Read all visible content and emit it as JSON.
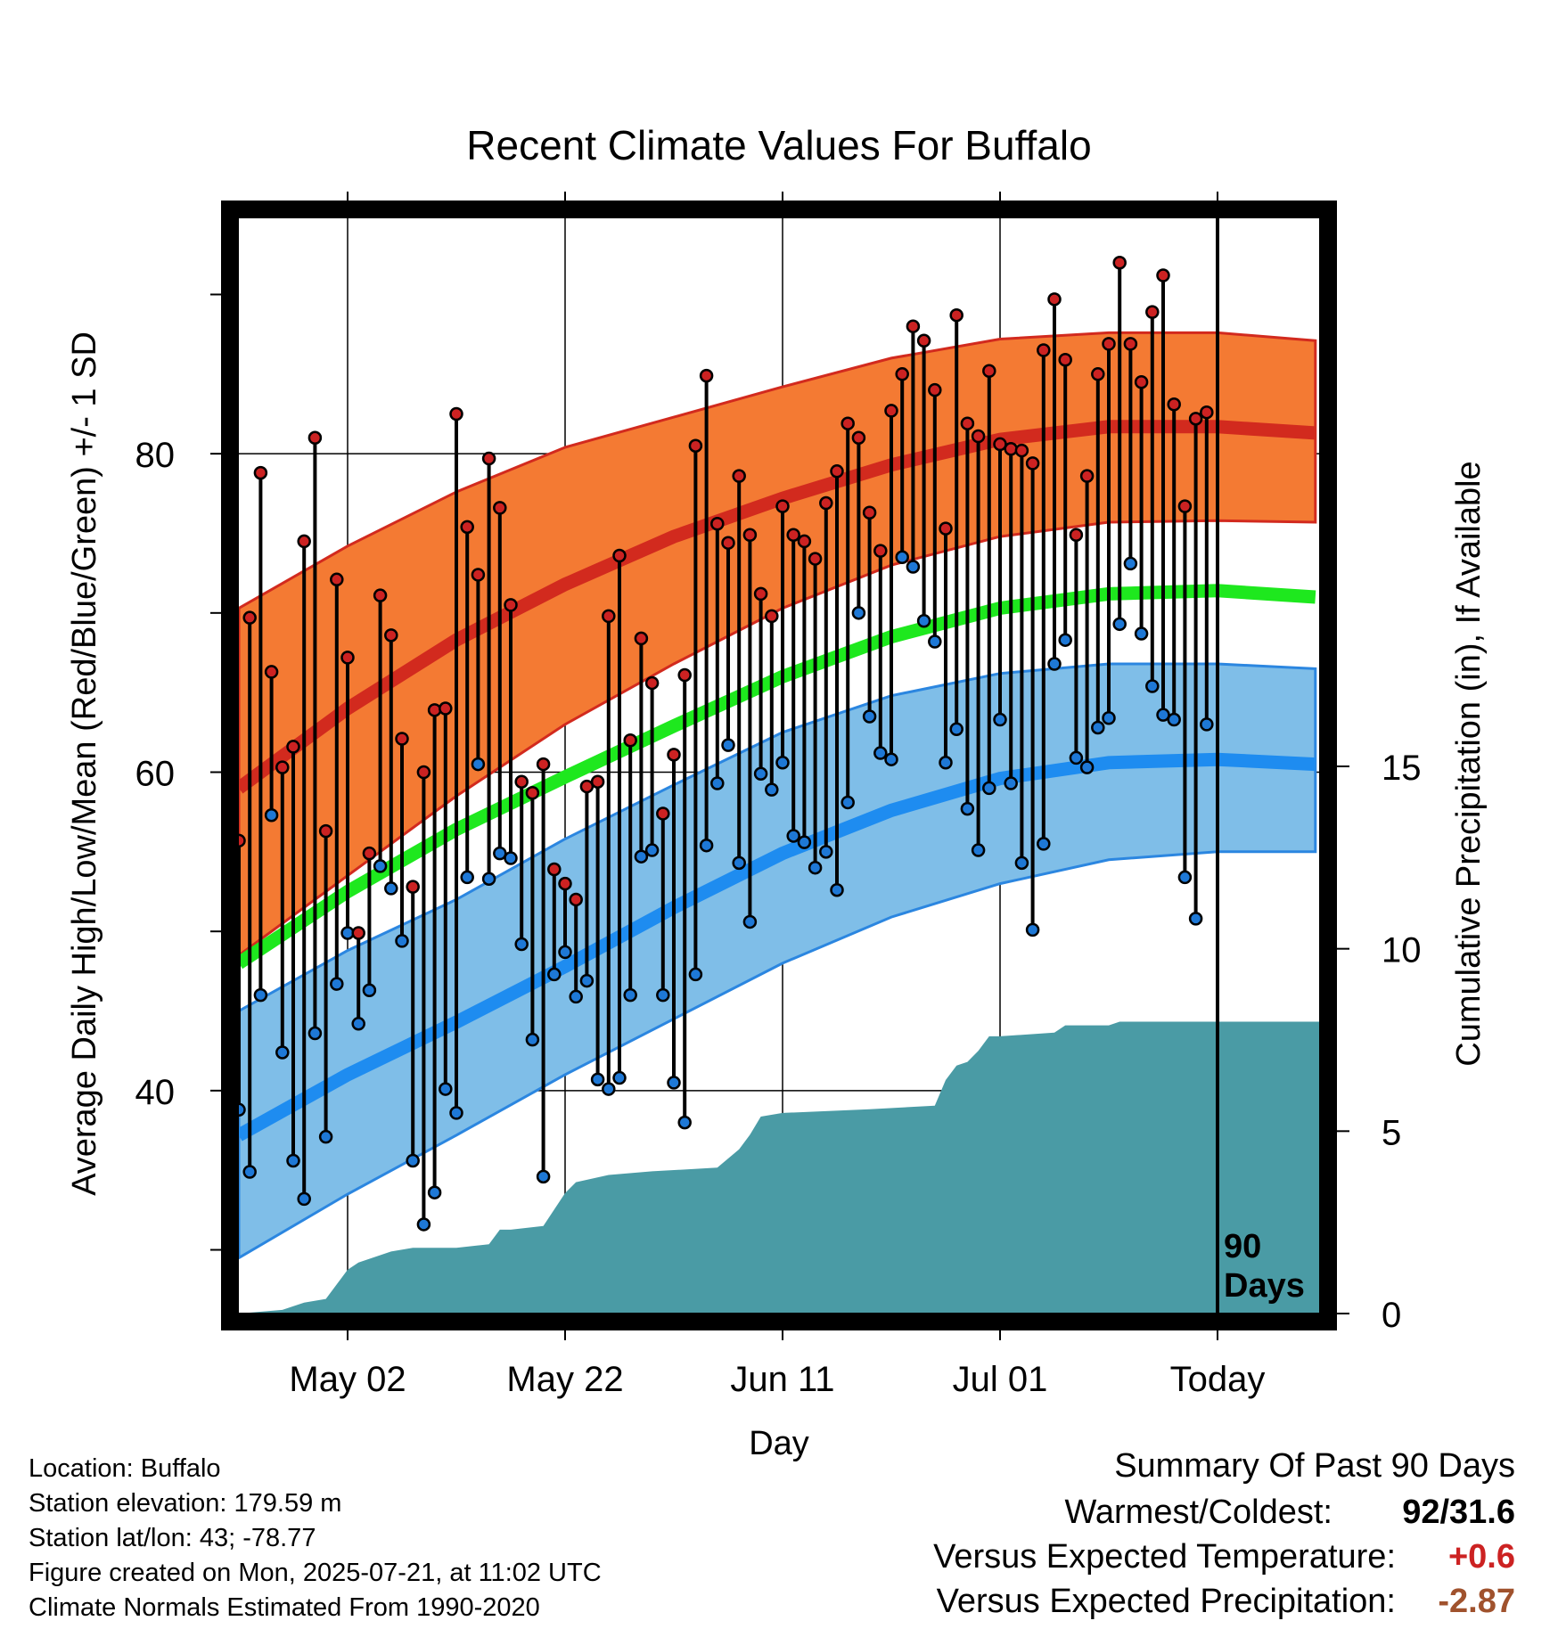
{
  "chart_data": {
    "type": "line",
    "title": "Recent Climate Values For Buffalo",
    "xlabel": "Day",
    "ylabel": "Average Daily High/Low/Mean (Red/Blue/Green) +/- 1 SD",
    "y2label": "Cumulative Precipitation (in), If Available",
    "ylim": [
      26,
      94
    ],
    "y_ticks": [
      40,
      60,
      80
    ],
    "y2lim": [
      0,
      30
    ],
    "y2_ticks": [
      0,
      5,
      10,
      15
    ],
    "x_ticks": [
      {
        "label": "May 02",
        "day": 10
      },
      {
        "label": "May 22",
        "day": 30
      },
      {
        "label": "Jun 11",
        "day": 50
      },
      {
        "label": "Jul 01",
        "day": 70
      },
      {
        "label": "Today",
        "day": 90
      }
    ],
    "today_day": 90,
    "today_label": [
      "90",
      "Days"
    ],
    "normals": {
      "days": [
        0,
        10,
        20,
        30,
        40,
        50,
        60,
        70,
        80,
        90,
        99
      ],
      "high_mean": [
        59,
        64,
        68.3,
        71.8,
        74.8,
        77.2,
        79.3,
        80.9,
        81.7,
        81.7,
        81.3
      ],
      "high_upper": [
        70.3,
        74.2,
        77.6,
        80.4,
        82.3,
        84.2,
        86.0,
        87.2,
        87.6,
        87.6,
        87.1
      ],
      "high_lower": [
        48.5,
        53.5,
        58.5,
        63.0,
        66.8,
        70.3,
        73.0,
        74.8,
        75.7,
        75.8,
        75.7
      ],
      "mean": [
        48,
        52.5,
        56.4,
        59.7,
        62.9,
        66,
        68.5,
        70.3,
        71.2,
        71.4,
        71
      ],
      "low_mean": [
        37.2,
        41.0,
        44.3,
        47.8,
        51.5,
        54.9,
        57.6,
        59.6,
        60.6,
        60.8,
        60.5
      ],
      "low_upper": [
        45.0,
        48.8,
        52.0,
        55.8,
        59.2,
        62.5,
        64.8,
        66.2,
        66.8,
        66.8,
        66.5
      ],
      "low_lower": [
        29.5,
        33.5,
        37.2,
        41.0,
        44.5,
        48.0,
        50.9,
        53.0,
        54.5,
        55.0,
        55.0
      ]
    },
    "series": [
      {
        "name": "High",
        "color": "#cc2222",
        "values": [
          55.7,
          69.7,
          78.8,
          66.3,
          60.3,
          61.6,
          74.5,
          81.0,
          56.3,
          72.1,
          67.2,
          49.9,
          54.9,
          71.1,
          68.6,
          62.1,
          52.8,
          60.0,
          63.9,
          64.0,
          82.5,
          75.4,
          72.4,
          79.7,
          76.6,
          70.5,
          59.4,
          58.7,
          60.5,
          53.9,
          53.0,
          52.0,
          59.1,
          59.4,
          69.8,
          73.6,
          62.0,
          68.4,
          65.6,
          57.4,
          61.1,
          66.1,
          80.5,
          84.9,
          75.6,
          74.4,
          78.6,
          74.9,
          71.2,
          69.8,
          76.7,
          74.9,
          74.5,
          73.4,
          76.9,
          78.9,
          81.9,
          81.0,
          76.3,
          73.9,
          82.7,
          85.0,
          88.0,
          87.1,
          84.0,
          75.3,
          88.7,
          81.9,
          81.1,
          85.2,
          80.6,
          80.3,
          80.2,
          79.4,
          86.5,
          89.7,
          85.9,
          74.9,
          78.6,
          85.0,
          86.9,
          92.0,
          86.9,
          84.5,
          88.9,
          91.2,
          83.1,
          76.7,
          82.2,
          82.6
        ],
        "lows": [
          38.8,
          34.9,
          46.0,
          57.3,
          42.4,
          35.6,
          33.2,
          43.6,
          37.1,
          46.7,
          49.9,
          44.2,
          46.3,
          54.1,
          52.7,
          49.4,
          35.6,
          31.6,
          33.6,
          40.1,
          38.6,
          53.4,
          60.5,
          53.3,
          54.9,
          54.6,
          49.2,
          43.2,
          34.6,
          47.3,
          48.7,
          45.9,
          46.9,
          40.7,
          40.1,
          40.8,
          46.0,
          54.7,
          55.1,
          46.0,
          40.5,
          38.0,
          47.3,
          55.4,
          59.3,
          61.7,
          54.3,
          50.6,
          59.9,
          58.9,
          60.6,
          56.0,
          55.6,
          54.0,
          55.0,
          52.6,
          58.1,
          70.0,
          63.5,
          61.2,
          60.8,
          73.5,
          72.9,
          69.5,
          68.2,
          60.6,
          62.7,
          57.7,
          55.1,
          59.0,
          63.3,
          59.3,
          54.3,
          50.1,
          55.5,
          66.8,
          68.3,
          60.9,
          60.3,
          62.8,
          63.4,
          69.3,
          73.1,
          68.7,
          65.4,
          63.6,
          63.3,
          53.4,
          50.8,
          63.0
        ]
      },
      {
        "name": "Low",
        "color": "#1e78d6"
      }
    ],
    "precip": {
      "days": [
        0,
        4,
        6,
        8,
        9,
        10,
        11,
        12,
        14,
        16,
        18,
        20,
        23,
        24,
        25,
        28,
        30,
        31,
        34,
        38,
        44,
        46,
        47,
        48,
        50,
        58,
        64,
        65,
        66,
        67,
        68,
        69,
        70,
        75,
        76,
        80,
        81,
        90,
        100
      ],
      "values": [
        0,
        0.1,
        0.3,
        0.4,
        0.8,
        1.2,
        1.4,
        1.5,
        1.7,
        1.8,
        1.8,
        1.8,
        1.9,
        2.3,
        2.3,
        2.4,
        3.3,
        3.6,
        3.8,
        3.9,
        4.0,
        4.5,
        4.9,
        5.4,
        5.5,
        5.6,
        5.7,
        6.4,
        6.8,
        6.9,
        7.2,
        7.6,
        7.6,
        7.7,
        7.9,
        7.9,
        8.0,
        8.0,
        8.0
      ],
      "color": "#4a9ba5"
    }
  },
  "footer": {
    "location": "Location: Buffalo",
    "elevation": "Station elevation: 179.59 m",
    "latlon": "Station lat/lon: 43; -78.77",
    "created": "Figure created on Mon, 2025-07-21, at 11:02 UTC",
    "normals": "Climate Normals Estimated From 1990-2020"
  },
  "summary": {
    "heading": "Summary Of Past 90 Days",
    "warm_cold_label": "Warmest/Coldest:",
    "warm_cold_value": "92/31.6",
    "temp_label": "Versus Expected Temperature:",
    "temp_value": "+0.6",
    "temp_color": "#cc2222",
    "precip_label": "Versus Expected Precipitation:",
    "precip_value": "-2.87",
    "precip_color": "#a0522d"
  }
}
